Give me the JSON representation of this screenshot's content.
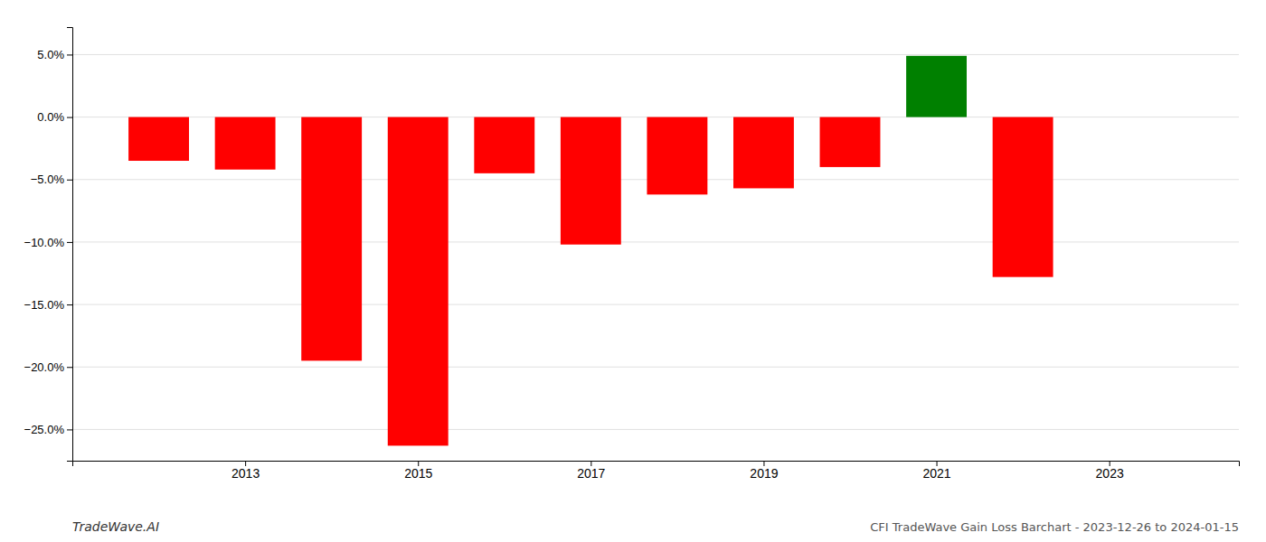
{
  "chart_data": {
    "type": "bar",
    "title": "CFI TradeWave Gain Loss Barchart - 2023-12-26 to 2024-01-15",
    "annotations": [
      "TradeWave.AI"
    ],
    "x": [
      2012,
      2013,
      2014,
      2015,
      2016,
      2017,
      2018,
      2019,
      2020,
      2021,
      2022
    ],
    "values": [
      -3.5,
      -4.2,
      -19.5,
      -26.3,
      -4.5,
      -10.2,
      -6.2,
      -5.7,
      -4.0,
      4.9,
      -12.8
    ],
    "colors": [
      "#ff0000",
      "#ff0000",
      "#ff0000",
      "#ff0000",
      "#ff0000",
      "#ff0000",
      "#ff0000",
      "#ff0000",
      "#ff0000",
      "#008000",
      "#ff0000"
    ],
    "xlim": [
      2011.0,
      2024.5
    ],
    "xticks": [
      2013,
      2015,
      2017,
      2019,
      2021,
      2023
    ],
    "ylim": [
      -27.5,
      7.2
    ],
    "yticks": [
      {
        "value": 5.0,
        "label": "5.0%"
      },
      {
        "value": 0.0,
        "label": "0.0%"
      },
      {
        "value": -5.0,
        "label": "−5.0%"
      },
      {
        "value": -10.0,
        "label": "−10.0%"
      },
      {
        "value": -15.0,
        "label": "−15.0%"
      },
      {
        "value": -20.0,
        "label": "−20.0%"
      },
      {
        "value": -25.0,
        "label": "−25.0%"
      }
    ],
    "grid": true
  }
}
